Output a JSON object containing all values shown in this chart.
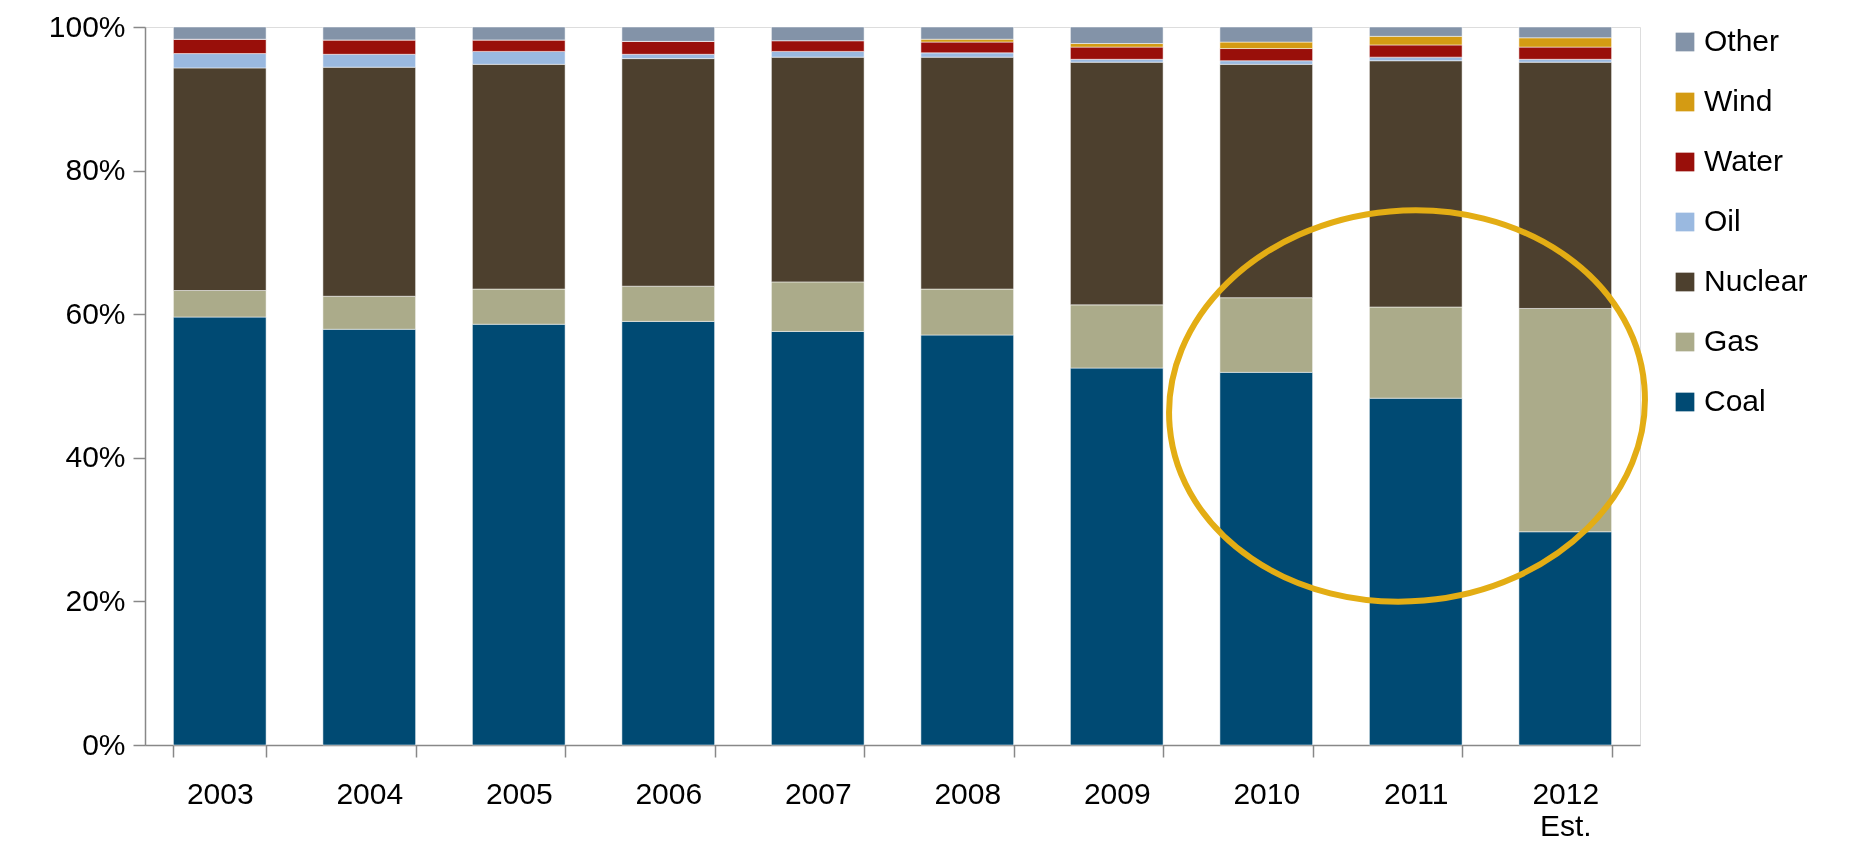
{
  "chart_data": {
    "type": "bar",
    "stacked": true,
    "categories": [
      "2003",
      "2004",
      "2005",
      "2006",
      "2007",
      "2008",
      "2009",
      "2010",
      "2011",
      "2012\nEst."
    ],
    "series": [
      {
        "name": "Coal",
        "color": "#004a73",
        "values": [
          59.6,
          57.9,
          58.6,
          59.0,
          57.6,
          57.1,
          52.5,
          51.9,
          48.3,
          29.7
        ]
      },
      {
        "name": "Gas",
        "color": "#abab8a",
        "values": [
          3.7,
          4.6,
          4.9,
          4.9,
          6.9,
          6.4,
          8.8,
          10.4,
          12.7,
          31.1
        ]
      },
      {
        "name": "Nuclear",
        "color": "#4d402e",
        "values": [
          31.0,
          31.9,
          31.3,
          31.7,
          31.3,
          32.3,
          33.8,
          32.5,
          34.3,
          34.3
        ]
      },
      {
        "name": "Oil",
        "color": "#9ab9e0",
        "values": [
          2.0,
          1.8,
          1.8,
          0.6,
          0.8,
          0.6,
          0.4,
          0.5,
          0.5,
          0.4
        ]
      },
      {
        "name": "Water",
        "color": "#990f0a",
        "values": [
          2.0,
          2.0,
          1.6,
          1.8,
          1.5,
          1.5,
          1.7,
          1.7,
          1.7,
          1.7
        ]
      },
      {
        "name": "Wind",
        "color": "#d49b13",
        "values": [
          0,
          0,
          0,
          0,
          0,
          0.4,
          0.5,
          0.9,
          1.2,
          1.3
        ]
      },
      {
        "name": "Other",
        "color": "#8393a8",
        "values": [
          1.7,
          1.8,
          1.8,
          2.0,
          1.9,
          1.7,
          2.3,
          2.1,
          1.3,
          1.5
        ]
      }
    ],
    "ylim": [
      0,
      100
    ],
    "yticks": [
      {
        "value": 0,
        "label": "0%"
      },
      {
        "value": 20,
        "label": "20%"
      },
      {
        "value": 40,
        "label": "40%"
      },
      {
        "value": 60,
        "label": "60%"
      },
      {
        "value": 80,
        "label": "80%"
      },
      {
        "value": 100,
        "label": "100%"
      }
    ],
    "grid": false,
    "legend": "right"
  }
}
